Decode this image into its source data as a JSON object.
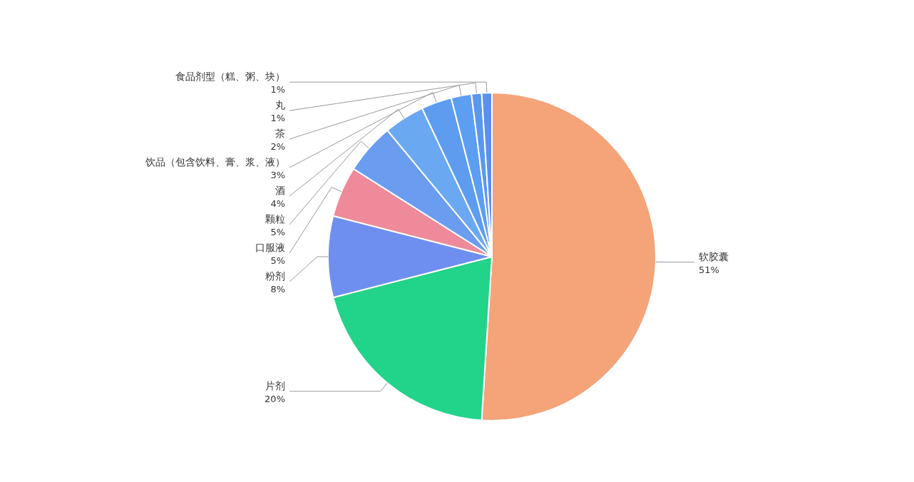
{
  "chart_data": {
    "type": "pie",
    "categories": [
      "软胶囊",
      "片剂",
      "粉剂",
      "口服液",
      "颗粒",
      "酒",
      "饮品（包含饮料、膏、浆、液）",
      "茶",
      "丸",
      "食品剂型（糕、粥、块）"
    ],
    "values": [
      51,
      20,
      8,
      5,
      5,
      4,
      3,
      2,
      1,
      1
    ],
    "value_labels": [
      "51%",
      "20%",
      "8%",
      "5%",
      "5%",
      "4%",
      "3%",
      "2%",
      "1%",
      "1%"
    ],
    "colors": [
      "#f5a378",
      "#22d38a",
      "#6f8ff0",
      "#ee8a9a",
      "#6a9cf0",
      "#6aa8f2",
      "#5e9cf0",
      "#5b9ef2",
      "#5a98f0",
      "#5a90ee"
    ]
  }
}
